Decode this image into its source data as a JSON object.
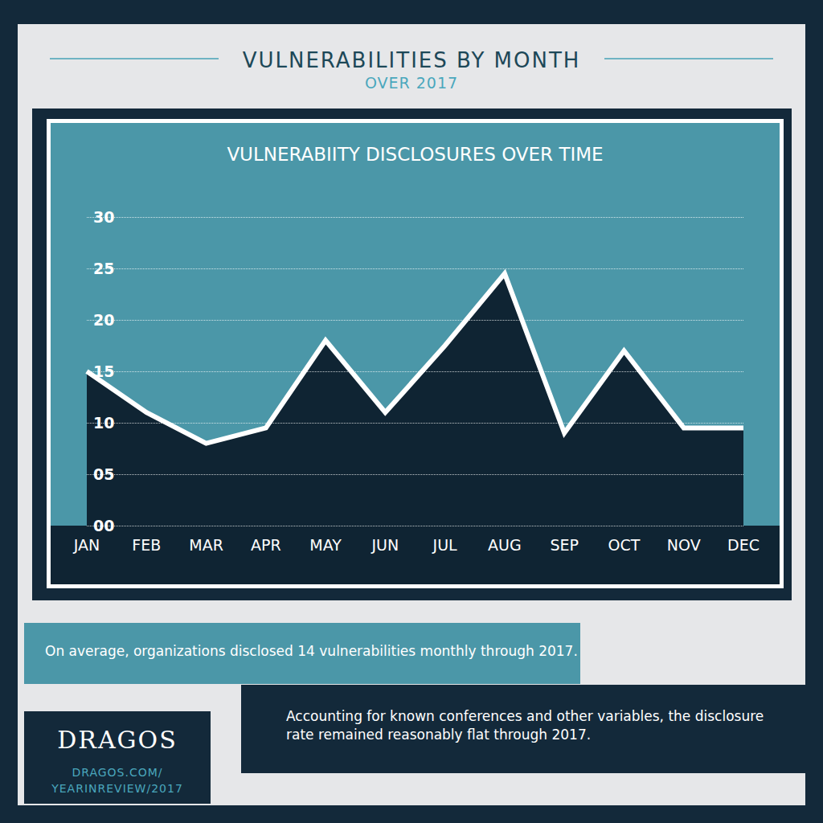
{
  "title": "VULNERABILITIES BY MONTH",
  "subtitle": "OVER 2017",
  "annotations": [
    "On average, organizations disclosed 14 vulnerabilities monthly through 2017.",
    "Accounting for known conferences and other variables, the disclosure rate remained reasonably flat through 2017."
  ],
  "brand": "DRAGOS",
  "brand_url": [
    "DRAGOS.COM/",
    "YEARINREVIEW/2017"
  ],
  "chart_data": {
    "type": "line",
    "title": "VULNERABIITY DISCLOSURES OVER TIME",
    "categories": [
      "JAN",
      "FEB",
      "MAR",
      "APR",
      "MAY",
      "JUN",
      "JUL",
      "AUG",
      "SEP",
      "OCT",
      "NOV",
      "DEC"
    ],
    "values": [
      15,
      11,
      8,
      9.5,
      18,
      11,
      17.5,
      24.5,
      9,
      17,
      9.5,
      9.5
    ],
    "color": "#ffffff",
    "ylim": [
      0,
      30
    ],
    "yticks": [
      {
        "value": 0,
        "label": "00"
      },
      {
        "value": 5,
        "label": "05"
      },
      10,
      15,
      20,
      25,
      30
    ],
    "grid": true
  }
}
